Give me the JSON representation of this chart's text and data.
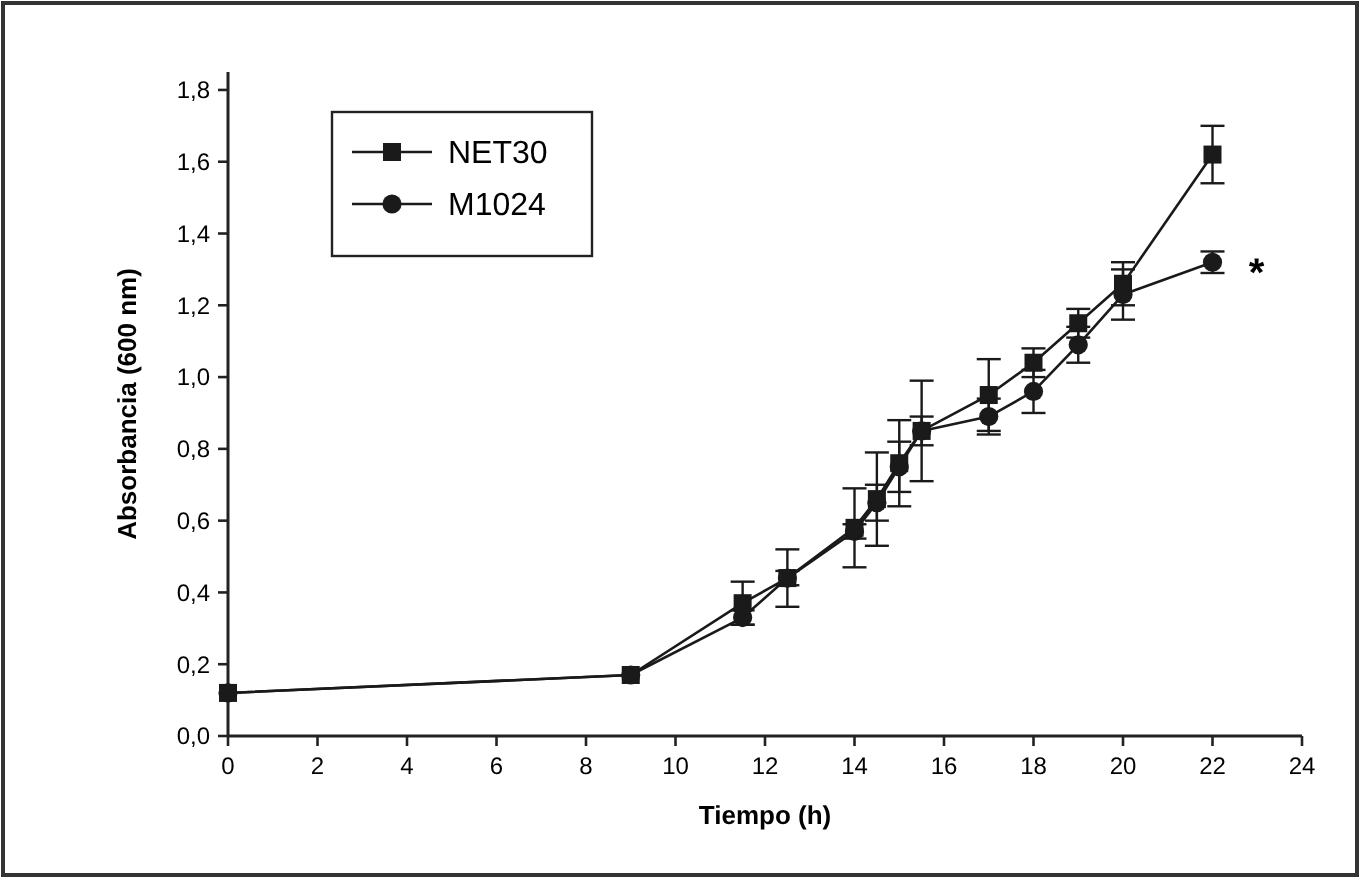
{
  "chart_data": {
    "type": "line",
    "xlabel": "Tiempo (h)",
    "ylabel": "Absorbancia (600 nm)",
    "x": [
      0,
      9,
      11.5,
      12.5,
      14,
      14.5,
      15,
      15.5,
      17,
      18,
      19,
      20,
      22
    ],
    "series": [
      {
        "name": "NET30",
        "color": "#1a1a1a",
        "marker": "square",
        "values": [
          0.12,
          0.17,
          0.37,
          0.44,
          0.58,
          0.66,
          0.76,
          0.85,
          0.95,
          1.04,
          1.15,
          1.26,
          1.62
        ],
        "errors": [
          null,
          null,
          0.06,
          0.08,
          0.11,
          0.13,
          0.12,
          0.14,
          0.1,
          0.04,
          0.04,
          0.06,
          0.08
        ]
      },
      {
        "name": "M1024",
        "color": "#1a1a1a",
        "marker": "circle",
        "values": [
          0.12,
          0.17,
          0.33,
          0.44,
          0.57,
          0.65,
          0.75,
          0.85,
          0.89,
          0.96,
          1.09,
          1.23,
          1.32
        ],
        "errors": [
          null,
          null,
          0.02,
          0.02,
          0.02,
          0.05,
          0.07,
          0.04,
          0.05,
          0.06,
          0.05,
          0.07,
          0.03
        ]
      }
    ],
    "xlim": [
      0,
      24
    ],
    "xticks": [
      0,
      2,
      4,
      6,
      8,
      10,
      12,
      14,
      16,
      18,
      20,
      22,
      24
    ],
    "ylim": [
      0,
      1.85
    ],
    "yticks": [
      {
        "value": 0,
        "label": "0,0"
      },
      {
        "value": 0.2,
        "label": "0,2"
      },
      {
        "value": 0.4,
        "label": "0,4"
      },
      {
        "value": 0.6,
        "label": "0,6"
      },
      {
        "value": 0.8,
        "label": "0,8"
      },
      {
        "value": 1.0,
        "label": "1,0"
      },
      {
        "value": 1.2,
        "label": "1,2"
      },
      {
        "value": 1.4,
        "label": "1,4"
      },
      {
        "value": 1.6,
        "label": "1,6"
      },
      {
        "value": 1.8,
        "label": "1,8"
      }
    ],
    "annotations": [
      "*"
    ],
    "legend": "top left",
    "grid": false,
    "line_style": "solid"
  }
}
